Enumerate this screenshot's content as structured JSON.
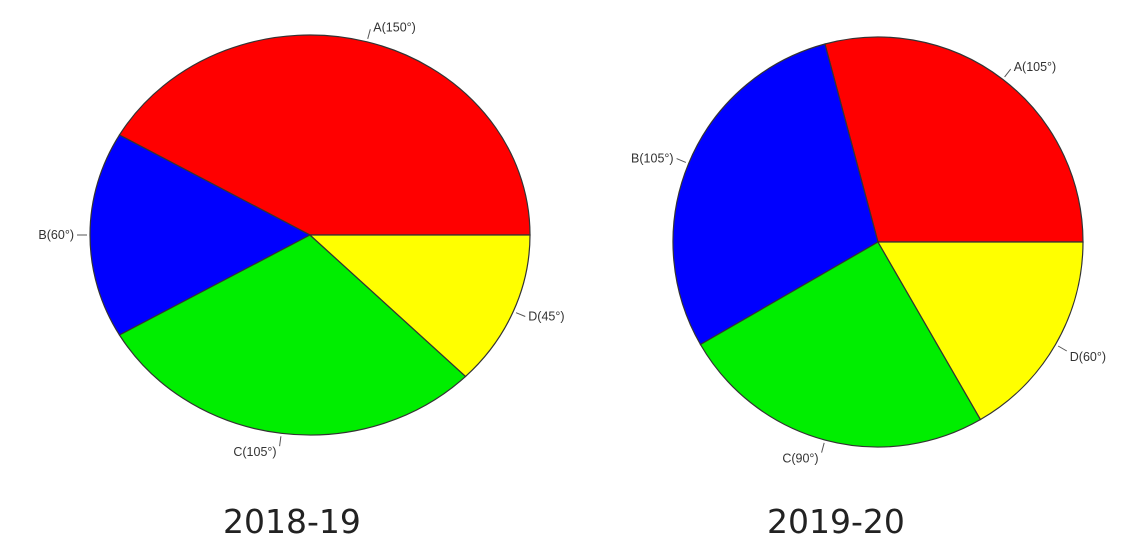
{
  "chart_data": [
    {
      "type": "pie",
      "caption": "2018-19",
      "unit": "degrees",
      "labels": [
        "A(150°)",
        "B(60°)",
        "C(105°)",
        "D(45°)"
      ],
      "categories": [
        "A",
        "B",
        "C",
        "D"
      ],
      "values": [
        150,
        60,
        105,
        45
      ],
      "colors": [
        "#ff0000",
        "#0000ff",
        "#00ee00",
        "#ffff00"
      ],
      "legend": "none"
    },
    {
      "type": "pie",
      "caption": "2019-20",
      "unit": "degrees",
      "labels": [
        "A(105°)",
        "B(105°)",
        "C(90°)",
        "D(60°)"
      ],
      "categories": [
        "A",
        "B",
        "C",
        "D"
      ],
      "values": [
        105,
        105,
        90,
        60
      ],
      "colors": [
        "#ff0000",
        "#0000ff",
        "#00ee00",
        "#ffff00"
      ],
      "legend": "none"
    }
  ]
}
